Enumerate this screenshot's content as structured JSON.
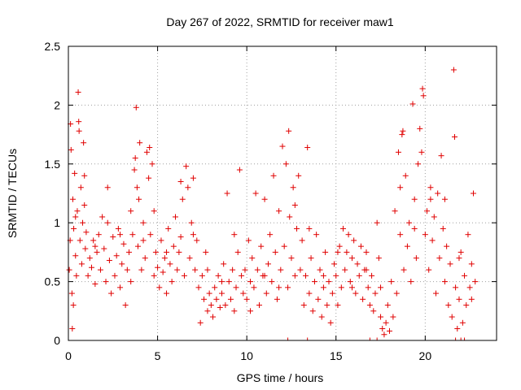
{
  "chart_data": {
    "type": "scatter",
    "title": "Day 267 of 2022, SRMTID for receiver maw1",
    "xlabel": "GPS time / hours",
    "ylabel": "SRMTID / TECUs",
    "xlim": [
      0,
      24
    ],
    "ylim": [
      0,
      2.5
    ],
    "grid": true,
    "marker": "+",
    "color": "#e00000",
    "x_ticks": [
      0,
      5,
      10,
      15,
      20
    ],
    "x_tick_labels": [
      "0",
      "5",
      "10",
      "15",
      "20"
    ],
    "y_ticks": [
      0,
      0.5,
      1,
      1.5,
      2,
      2.5
    ],
    "y_tick_labels": [
      "0",
      "0.5",
      "1",
      "1.5",
      "2",
      "2.5"
    ],
    "note": "approximate point cloud read from figure: points as [hour, TECU]",
    "points": [
      [
        0.05,
        0.6
      ],
      [
        0.1,
        0.85
      ],
      [
        0.12,
        1.84
      ],
      [
        0.15,
        1.62
      ],
      [
        0.2,
        0.4
      ],
      [
        0.22,
        0.1
      ],
      [
        0.25,
        1.2
      ],
      [
        0.28,
        0.3
      ],
      [
        0.3,
        0.95
      ],
      [
        0.35,
        1.42
      ],
      [
        0.4,
        0.72
      ],
      [
        0.45,
        0.55
      ],
      [
        0.5,
        1.1
      ],
      [
        0.55,
        2.11
      ],
      [
        0.58,
        1.86
      ],
      [
        0.6,
        1.78
      ],
      [
        0.65,
        0.85
      ],
      [
        0.7,
        1.3
      ],
      [
        0.75,
        0.65
      ],
      [
        0.8,
        1.0
      ],
      [
        0.85,
        1.68
      ],
      [
        0.9,
        1.15
      ],
      [
        0.95,
        0.78
      ],
      [
        1.0,
        0.92
      ],
      [
        1.1,
        0.55
      ],
      [
        1.2,
        0.7
      ],
      [
        1.3,
        0.62
      ],
      [
        1.4,
        0.85
      ],
      [
        1.5,
        0.48
      ],
      [
        1.6,
        0.75
      ],
      [
        1.7,
        0.9
      ],
      [
        1.8,
        0.6
      ],
      [
        1.9,
        1.05
      ],
      [
        2.0,
        0.78
      ],
      [
        2.1,
        0.5
      ],
      [
        2.2,
        1.0
      ],
      [
        2.3,
        0.68
      ],
      [
        2.4,
        0.4
      ],
      [
        2.5,
        0.88
      ],
      [
        2.6,
        0.55
      ],
      [
        2.7,
        0.72
      ],
      [
        2.8,
        0.95
      ],
      [
        2.9,
        0.45
      ],
      [
        3.0,
        0.65
      ],
      [
        3.1,
        0.82
      ],
      [
        3.2,
        0.3
      ],
      [
        3.3,
        0.6
      ],
      [
        3.4,
        0.75
      ],
      [
        3.5,
        0.5
      ],
      [
        3.6,
        0.9
      ],
      [
        3.7,
        1.45
      ],
      [
        3.75,
        1.55
      ],
      [
        3.8,
        1.98
      ],
      [
        3.85,
        1.3
      ],
      [
        3.9,
        0.8
      ],
      [
        3.95,
        1.2
      ],
      [
        4.0,
        1.68
      ],
      [
        4.1,
        0.6
      ],
      [
        4.2,
        1.0
      ],
      [
        4.3,
        0.7
      ],
      [
        4.4,
        1.6
      ],
      [
        4.5,
        1.38
      ],
      [
        4.55,
        1.64
      ],
      [
        4.6,
        0.9
      ],
      [
        4.7,
        1.5
      ],
      [
        4.8,
        0.55
      ],
      [
        4.9,
        0.75
      ],
      [
        5.0,
        0.62
      ],
      [
        5.1,
        0.45
      ],
      [
        5.2,
        0.85
      ],
      [
        5.3,
        0.58
      ],
      [
        5.4,
        0.7
      ],
      [
        5.5,
        0.4
      ],
      [
        5.6,
        0.95
      ],
      [
        5.7,
        0.65
      ],
      [
        5.8,
        0.5
      ],
      [
        5.9,
        0.8
      ],
      [
        6.0,
        1.05
      ],
      [
        6.1,
        0.6
      ],
      [
        6.2,
        0.75
      ],
      [
        6.3,
        0.88
      ],
      [
        6.4,
        1.2
      ],
      [
        6.5,
        0.55
      ],
      [
        6.6,
        1.48
      ],
      [
        6.7,
        1.3
      ],
      [
        6.8,
        0.7
      ],
      [
        6.9,
        1.0
      ],
      [
        7.0,
        1.38
      ],
      [
        7.1,
        0.6
      ],
      [
        7.2,
        0.85
      ],
      [
        7.3,
        0.45
      ],
      [
        7.4,
        0.15
      ],
      [
        7.5,
        0.55
      ],
      [
        7.6,
        0.35
      ],
      [
        7.7,
        0.75
      ],
      [
        7.8,
        0.25
      ],
      [
        7.9,
        0.4
      ],
      [
        8.0,
        0.3
      ],
      [
        8.1,
        0.2
      ],
      [
        8.2,
        0.45
      ],
      [
        8.3,
        0.35
      ],
      [
        8.4,
        0.55
      ],
      [
        8.5,
        0.28
      ],
      [
        8.6,
        0.4
      ],
      [
        8.7,
        0.65
      ],
      [
        8.8,
        0.3
      ],
      [
        8.9,
        1.25
      ],
      [
        9.0,
        0.5
      ],
      [
        9.1,
        0.35
      ],
      [
        9.2,
        0.6
      ],
      [
        9.3,
        0.25
      ],
      [
        9.4,
        0.45
      ],
      [
        9.5,
        0.75
      ],
      [
        9.6,
        1.45
      ],
      [
        9.7,
        0.55
      ],
      [
        9.8,
        0.4
      ],
      [
        9.9,
        0.6
      ],
      [
        10.0,
        0.35
      ],
      [
        10.1,
        0.85
      ],
      [
        10.2,
        0.5
      ],
      [
        10.3,
        0.7
      ],
      [
        10.4,
        0.45
      ],
      [
        10.5,
        1.25
      ],
      [
        10.6,
        0.6
      ],
      [
        10.7,
        0.3
      ],
      [
        10.8,
        0.8
      ],
      [
        10.9,
        0.55
      ],
      [
        11.0,
        1.2
      ],
      [
        11.1,
        0.4
      ],
      [
        11.2,
        0.65
      ],
      [
        11.3,
        0.9
      ],
      [
        11.4,
        0.5
      ],
      [
        11.5,
        1.4
      ],
      [
        11.6,
        0.75
      ],
      [
        11.7,
        0.35
      ],
      [
        11.8,
        1.1
      ],
      [
        11.9,
        0.6
      ],
      [
        12.0,
        1.65
      ],
      [
        12.1,
        0.8
      ],
      [
        12.2,
        1.5
      ],
      [
        12.3,
        0.45
      ],
      [
        12.35,
        1.78
      ],
      [
        12.4,
        1.05
      ],
      [
        12.5,
        0.7
      ],
      [
        12.6,
        1.3
      ],
      [
        12.7,
        0.55
      ],
      [
        12.8,
        0.95
      ],
      [
        12.9,
        1.4
      ],
      [
        13.0,
        0.6
      ],
      [
        13.1,
        0.85
      ],
      [
        13.2,
        0.3
      ],
      [
        13.3,
        0.55
      ],
      [
        13.4,
        1.64
      ],
      [
        13.5,
        0.4
      ],
      [
        13.6,
        0.7
      ],
      [
        13.7,
        0.25
      ],
      [
        13.8,
        0.5
      ],
      [
        13.9,
        0.9
      ],
      [
        14.0,
        0.35
      ],
      [
        14.1,
        0.6
      ],
      [
        14.2,
        0.2
      ],
      [
        14.3,
        0.45
      ],
      [
        14.4,
        0.75
      ],
      [
        14.5,
        0.3
      ],
      [
        14.6,
        0.5
      ],
      [
        14.7,
        0.15
      ],
      [
        14.8,
        0.4
      ],
      [
        14.9,
        0.65
      ],
      [
        15.0,
        0.55
      ],
      [
        15.1,
        0.3
      ],
      [
        15.2,
        0.8
      ],
      [
        15.3,
        0.45
      ],
      [
        15.4,
        0.95
      ],
      [
        15.5,
        0.6
      ],
      [
        15.6,
        0.75
      ],
      [
        15.7,
        0.9
      ],
      [
        15.8,
        0.5
      ],
      [
        15.9,
        0.7
      ],
      [
        16.0,
        0.85
      ],
      [
        16.1,
        0.4
      ],
      [
        16.2,
        0.65
      ],
      [
        16.3,
        0.55
      ],
      [
        16.4,
        0.8
      ],
      [
        16.5,
        0.35
      ],
      [
        16.6,
        0.6
      ],
      [
        16.7,
        0.75
      ],
      [
        16.8,
        0.45
      ],
      [
        16.9,
        0.3
      ],
      [
        17.0,
        0.55
      ],
      [
        17.1,
        0.25
      ],
      [
        17.2,
        0.4
      ],
      [
        17.3,
        1.0
      ],
      [
        17.4,
        0.7
      ],
      [
        17.5,
        0.2
      ],
      [
        17.6,
        0.1
      ],
      [
        17.7,
        0.05
      ],
      [
        17.8,
        0.15
      ],
      [
        17.9,
        0.3
      ],
      [
        18.0,
        0.08
      ],
      [
        18.1,
        0.5
      ],
      [
        18.2,
        0.2
      ],
      [
        18.3,
        1.1
      ],
      [
        18.4,
        0.4
      ],
      [
        18.5,
        1.6
      ],
      [
        18.6,
        1.3
      ],
      [
        18.7,
        1.75
      ],
      [
        18.75,
        1.78
      ],
      [
        18.8,
        0.6
      ],
      [
        18.9,
        1.4
      ],
      [
        19.0,
        0.8
      ],
      [
        19.1,
        1.0
      ],
      [
        19.2,
        0.5
      ],
      [
        19.3,
        2.01
      ],
      [
        19.4,
        1.2
      ],
      [
        19.5,
        0.7
      ],
      [
        19.6,
        1.5
      ],
      [
        19.7,
        1.8
      ],
      [
        19.8,
        1.6
      ],
      [
        19.85,
        2.14
      ],
      [
        19.9,
        2.08
      ],
      [
        20.0,
        0.9
      ],
      [
        20.1,
        1.1
      ],
      [
        20.2,
        0.6
      ],
      [
        20.3,
        1.3
      ],
      [
        20.4,
        0.85
      ],
      [
        20.5,
        1.05
      ],
      [
        20.6,
        0.4
      ],
      [
        20.7,
        1.25
      ],
      [
        20.8,
        0.7
      ],
      [
        20.9,
        1.57
      ],
      [
        21.0,
        0.95
      ],
      [
        21.1,
        0.5
      ],
      [
        21.2,
        0.8
      ],
      [
        21.3,
        0.3
      ],
      [
        21.4,
        0.65
      ],
      [
        21.5,
        0.2
      ],
      [
        21.6,
        2.3
      ],
      [
        21.65,
        1.73
      ],
      [
        21.7,
        0.45
      ],
      [
        21.8,
        0.1
      ],
      [
        21.9,
        0.35
      ],
      [
        22.0,
        0.75
      ],
      [
        22.1,
        0.15
      ],
      [
        22.2,
        0.55
      ],
      [
        22.3,
        0.3
      ],
      [
        22.4,
        0.9
      ],
      [
        22.5,
        0.45
      ],
      [
        22.6,
        0.65
      ],
      [
        22.7,
        1.25
      ],
      [
        22.8,
        0.5
      ],
      [
        0.4,
        1.05
      ],
      [
        0.9,
        1.4
      ],
      [
        1.5,
        0.8
      ],
      [
        2.2,
        1.3
      ],
      [
        2.9,
        0.9
      ],
      [
        3.5,
        1.1
      ],
      [
        4.2,
        0.85
      ],
      [
        4.8,
        1.1
      ],
      [
        5.5,
        0.75
      ],
      [
        6.3,
        1.35
      ],
      [
        7.0,
        0.9
      ],
      [
        7.8,
        0.6
      ],
      [
        8.6,
        0.5
      ],
      [
        9.3,
        0.9
      ],
      [
        10.2,
        0.25
      ],
      [
        11.0,
        0.55
      ],
      [
        11.8,
        0.45
      ],
      [
        12.7,
        1.15
      ],
      [
        13.5,
        0.95
      ],
      [
        14.3,
        0.55
      ],
      [
        15.1,
        0.75
      ],
      [
        15.9,
        0.45
      ],
      [
        16.7,
        0.6
      ],
      [
        17.5,
        0.45
      ],
      [
        18.6,
        0.9
      ],
      [
        19.4,
        0.95
      ],
      [
        20.3,
        1.2
      ],
      [
        21.1,
        1.2
      ],
      [
        21.9,
        0.7
      ],
      [
        22.6,
        0.35
      ]
    ],
    "axis_points": [
      12.3,
      13.4,
      16.9,
      17.3,
      21.7,
      22.0,
      22.2
    ]
  }
}
